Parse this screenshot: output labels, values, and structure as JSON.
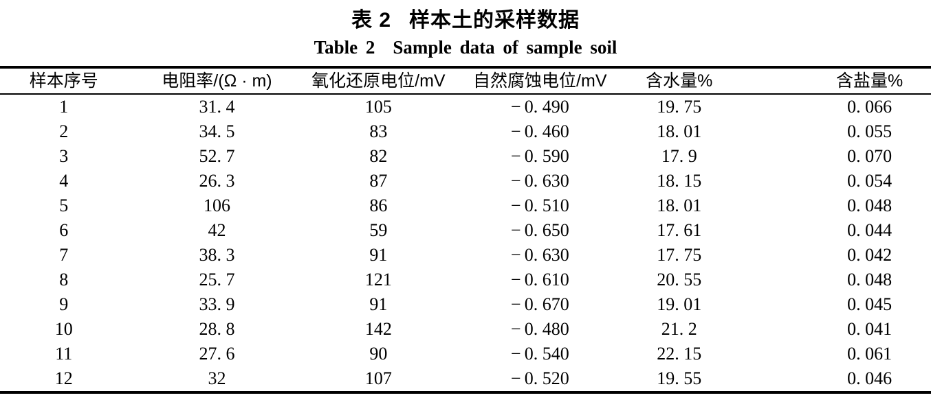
{
  "titles": {
    "zh_label": "表 2",
    "zh_text": "样本土的采样数据",
    "en_label": "Table 2",
    "en_text": "Sample data of sample soil"
  },
  "table": {
    "columns": [
      "样本序号",
      "电阻率/(Ω · m)",
      "氧化还原电位/mV",
      "自然腐蚀电位/mV",
      "含水量%",
      "含盐量%"
    ],
    "rows": [
      [
        "1",
        "31. 4",
        "105",
        "− 0. 490",
        "19. 75",
        "0. 066"
      ],
      [
        "2",
        "34. 5",
        "83",
        "− 0. 460",
        "18. 01",
        "0. 055"
      ],
      [
        "3",
        "52. 7",
        "82",
        "− 0. 590",
        "17. 9",
        "0. 070"
      ],
      [
        "4",
        "26. 3",
        "87",
        "− 0. 630",
        "18. 15",
        "0. 054"
      ],
      [
        "5",
        "106",
        "86",
        "− 0. 510",
        "18. 01",
        "0. 048"
      ],
      [
        "6",
        "42",
        "59",
        "− 0. 650",
        "17. 61",
        "0. 044"
      ],
      [
        "7",
        "38. 3",
        "91",
        "− 0. 630",
        "17. 75",
        "0. 042"
      ],
      [
        "8",
        "25. 7",
        "121",
        "− 0. 610",
        "20. 55",
        "0. 048"
      ],
      [
        "9",
        "33. 9",
        "91",
        "− 0. 670",
        "19. 01",
        "0. 045"
      ],
      [
        "10",
        "28. 8",
        "142",
        "− 0. 480",
        "21. 2",
        "0. 041"
      ],
      [
        "11",
        "27. 6",
        "90",
        "− 0. 540",
        "22. 15",
        "0. 061"
      ],
      [
        "12",
        "32",
        "107",
        "− 0. 520",
        "19. 55",
        "0. 046"
      ]
    ]
  }
}
